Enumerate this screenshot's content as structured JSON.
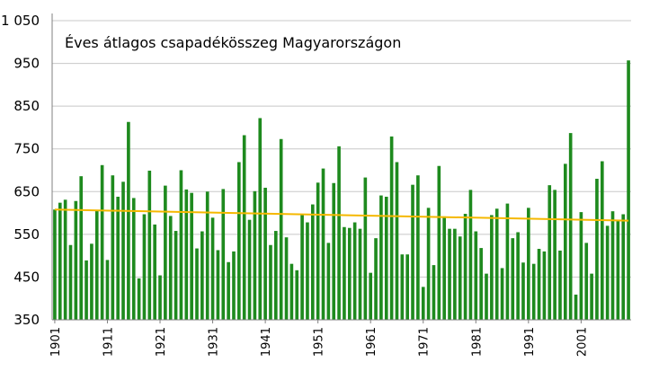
{
  "chart_data": {
    "type": "bar",
    "title": "Éves átlagos csapadékösszeg Magyarországon",
    "xlabel": "",
    "ylabel": "",
    "ylim": [
      350,
      1050
    ],
    "yticks": [
      350,
      450,
      550,
      650,
      750,
      850,
      950,
      "1 050"
    ],
    "xticks": [
      "1901",
      "1911",
      "1921",
      "1931",
      "1941",
      "1951",
      "1961",
      "1971",
      "1981",
      "1991",
      "2001"
    ],
    "grid": true,
    "bar_color": "#1e8a1e",
    "trend_color": "#f5b800",
    "x_start_year": 1901,
    "values": [
      608,
      624,
      631,
      525,
      628,
      686,
      489,
      528,
      605,
      712,
      490,
      688,
      638,
      673,
      813,
      635,
      447,
      597,
      699,
      573,
      454,
      664,
      593,
      558,
      700,
      655,
      647,
      517,
      557,
      650,
      589,
      513,
      656,
      485,
      510,
      719,
      782,
      584,
      651,
      822,
      659,
      525,
      558,
      773,
      543,
      481,
      466,
      595,
      578,
      620,
      671,
      704,
      530,
      670,
      756,
      567,
      565,
      578,
      563,
      683,
      460,
      541,
      641,
      638,
      779,
      719,
      503,
      503,
      666,
      688,
      427,
      612,
      478,
      710,
      592,
      563,
      563,
      545,
      598,
      654,
      557,
      518,
      458,
      595,
      610,
      471,
      622,
      541,
      555,
      484,
      612,
      481,
      516,
      510,
      665,
      654,
      512,
      715,
      787,
      409,
      602,
      530,
      458,
      680,
      721,
      570,
      604,
      583,
      597,
      957
    ],
    "trend": {
      "start": 608,
      "end": 582
    }
  }
}
